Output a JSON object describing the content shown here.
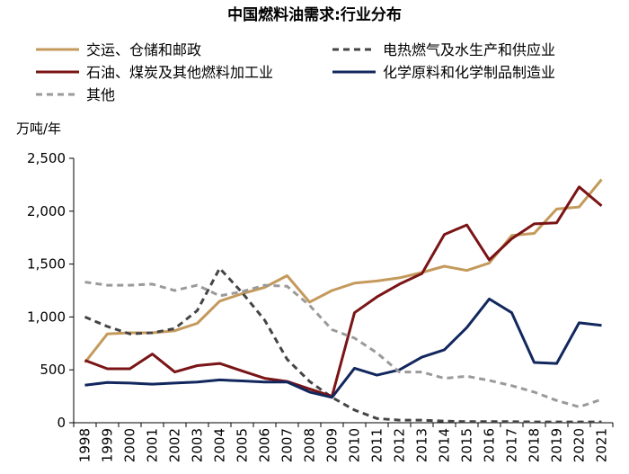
{
  "chart_data": {
    "type": "line",
    "title": "中国燃料油需求:行业分布",
    "ylabel": "万吨/年",
    "xlabel": "",
    "ylim": [
      0,
      2500
    ],
    "yticks": [
      0,
      500,
      1000,
      1500,
      2000,
      2500
    ],
    "ytick_labels": [
      "0",
      "500",
      "1,000",
      "1,500",
      "2,000",
      "2,500"
    ],
    "grid": false,
    "legend_position": "top",
    "x": [
      "1998",
      "1999",
      "2000",
      "2001",
      "2002",
      "2003",
      "2004",
      "2005",
      "2006",
      "2007",
      "2008",
      "2009",
      "2010",
      "2011",
      "2012",
      "2013",
      "2014",
      "2015",
      "2016",
      "2017",
      "2018",
      "2019",
      "2020",
      "2021"
    ],
    "series": [
      {
        "name": "交运、仓储和邮政",
        "color": "#c49a5c",
        "dash": "solid",
        "values": [
          570,
          840,
          850,
          850,
          870,
          940,
          1150,
          1220,
          1280,
          1390,
          1140,
          1250,
          1320,
          1340,
          1370,
          1420,
          1480,
          1440,
          1510,
          1770,
          1790,
          2020,
          2040,
          2300
        ]
      },
      {
        "name": "电热燃气及水生产和供应业",
        "color": "#444444",
        "dash": "dashed",
        "values": [
          1000,
          910,
          840,
          850,
          890,
          1060,
          1460,
          1230,
          970,
          600,
          390,
          240,
          120,
          40,
          25,
          25,
          15,
          10,
          10,
          10,
          8,
          8,
          8,
          8
        ]
      },
      {
        "name": "石油、煤炭及其他燃料加工业",
        "color": "#7a1416",
        "dash": "solid",
        "values": [
          590,
          510,
          510,
          650,
          480,
          540,
          560,
          490,
          420,
          390,
          320,
          250,
          1040,
          1190,
          1310,
          1410,
          1780,
          1870,
          1540,
          1740,
          1880,
          1890,
          2230,
          2050
        ]
      },
      {
        "name": "化学原料和化学制品制造业",
        "color": "#12275e",
        "dash": "solid",
        "values": [
          355,
          380,
          375,
          365,
          375,
          385,
          405,
          395,
          385,
          385,
          290,
          240,
          515,
          450,
          500,
          620,
          690,
          900,
          1170,
          1040,
          570,
          560,
          945,
          920
        ]
      },
      {
        "name": "其他",
        "color": "#9a9a9a",
        "dash": "dashed",
        "values": [
          1330,
          1300,
          1300,
          1310,
          1250,
          1300,
          1200,
          1240,
          1300,
          1290,
          1110,
          880,
          800,
          660,
          480,
          480,
          420,
          440,
          400,
          350,
          290,
          210,
          150,
          220
        ]
      }
    ]
  }
}
